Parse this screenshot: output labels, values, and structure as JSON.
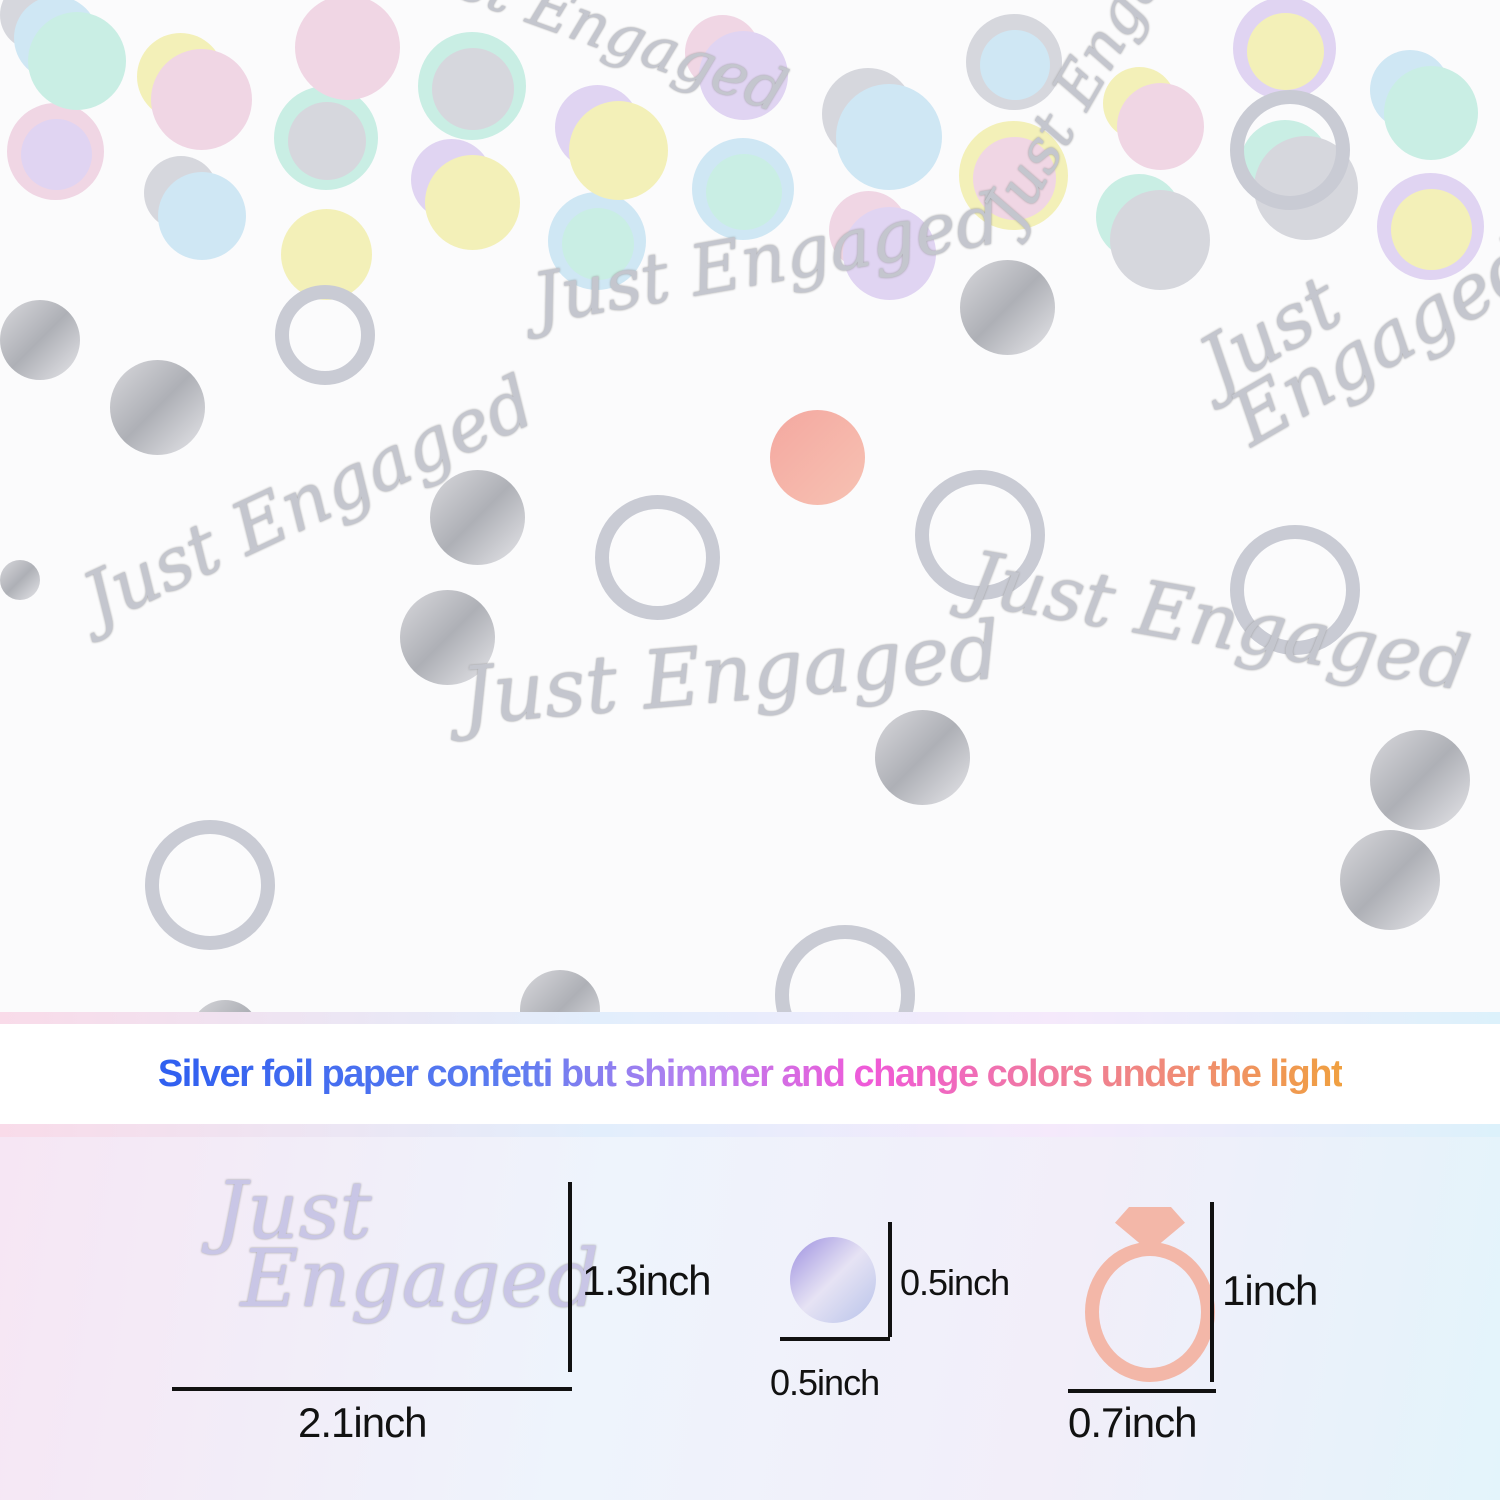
{
  "photo": {
    "decor_text": "Just Engaged"
  },
  "headline": "Silver foil paper confetti but shimmer and change colors under the light",
  "dimensions": {
    "script_piece": {
      "height": "1.3inch",
      "width": "2.1inch"
    },
    "dot_piece": {
      "height": "0.5inch",
      "width": "0.5inch"
    },
    "ring_piece": {
      "height": "1inch",
      "width": "0.7inch"
    }
  },
  "colors": {
    "ring_accent": "#f3b7a8",
    "dot_accent": "#b6a8e0"
  }
}
